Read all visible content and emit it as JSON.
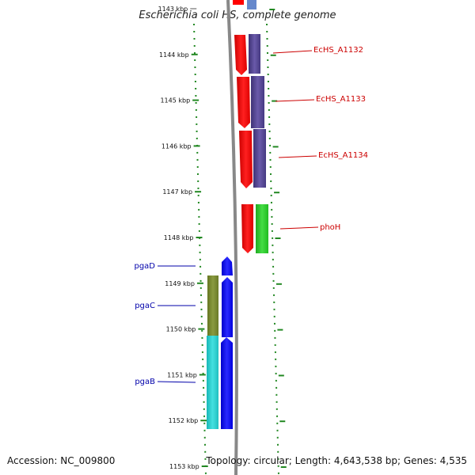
{
  "title": "Escherichia coli HS, complete genome",
  "accession": "Accession: NC_009800",
  "summary": "Topology: circular; Length: 4,643,538 bp; Genes: 4,535",
  "ruler": {
    "start_kbp": 1143,
    "labels": [
      "1143 kbp",
      "1144 kbp",
      "1145 kbp",
      "1146 kbp",
      "1147 kbp",
      "1148 kbp",
      "1149 kbp",
      "1150 kbp",
      "1151 kbp",
      "1152 kbp",
      "1153 kbp"
    ]
  },
  "colors": {
    "backbone": "#888888",
    "ruler": "#228822",
    "gene_red": "#ff0000",
    "gene_purple": "#5a4a9a",
    "gene_green": "#33cc33",
    "gene_blue": "#0000ff",
    "gene_olive": "#7a8a30",
    "gene_cyan": "#22cccc",
    "label_right": "#cc0000",
    "label_left": "#0000aa"
  },
  "genes_right": [
    {
      "name": "EcHS_A1132",
      "color": "#cc0000"
    },
    {
      "name": "EcHS_A1133",
      "color": "#cc0000"
    },
    {
      "name": "EcHS_A1134",
      "color": "#cc0000"
    },
    {
      "name": "phoH",
      "color": "#cc0000"
    }
  ],
  "genes_left": [
    {
      "name": "pgaD",
      "color": "#0000aa"
    },
    {
      "name": "pgaC",
      "color": "#0000aa"
    },
    {
      "name": "pgaB",
      "color": "#0000aa"
    }
  ]
}
